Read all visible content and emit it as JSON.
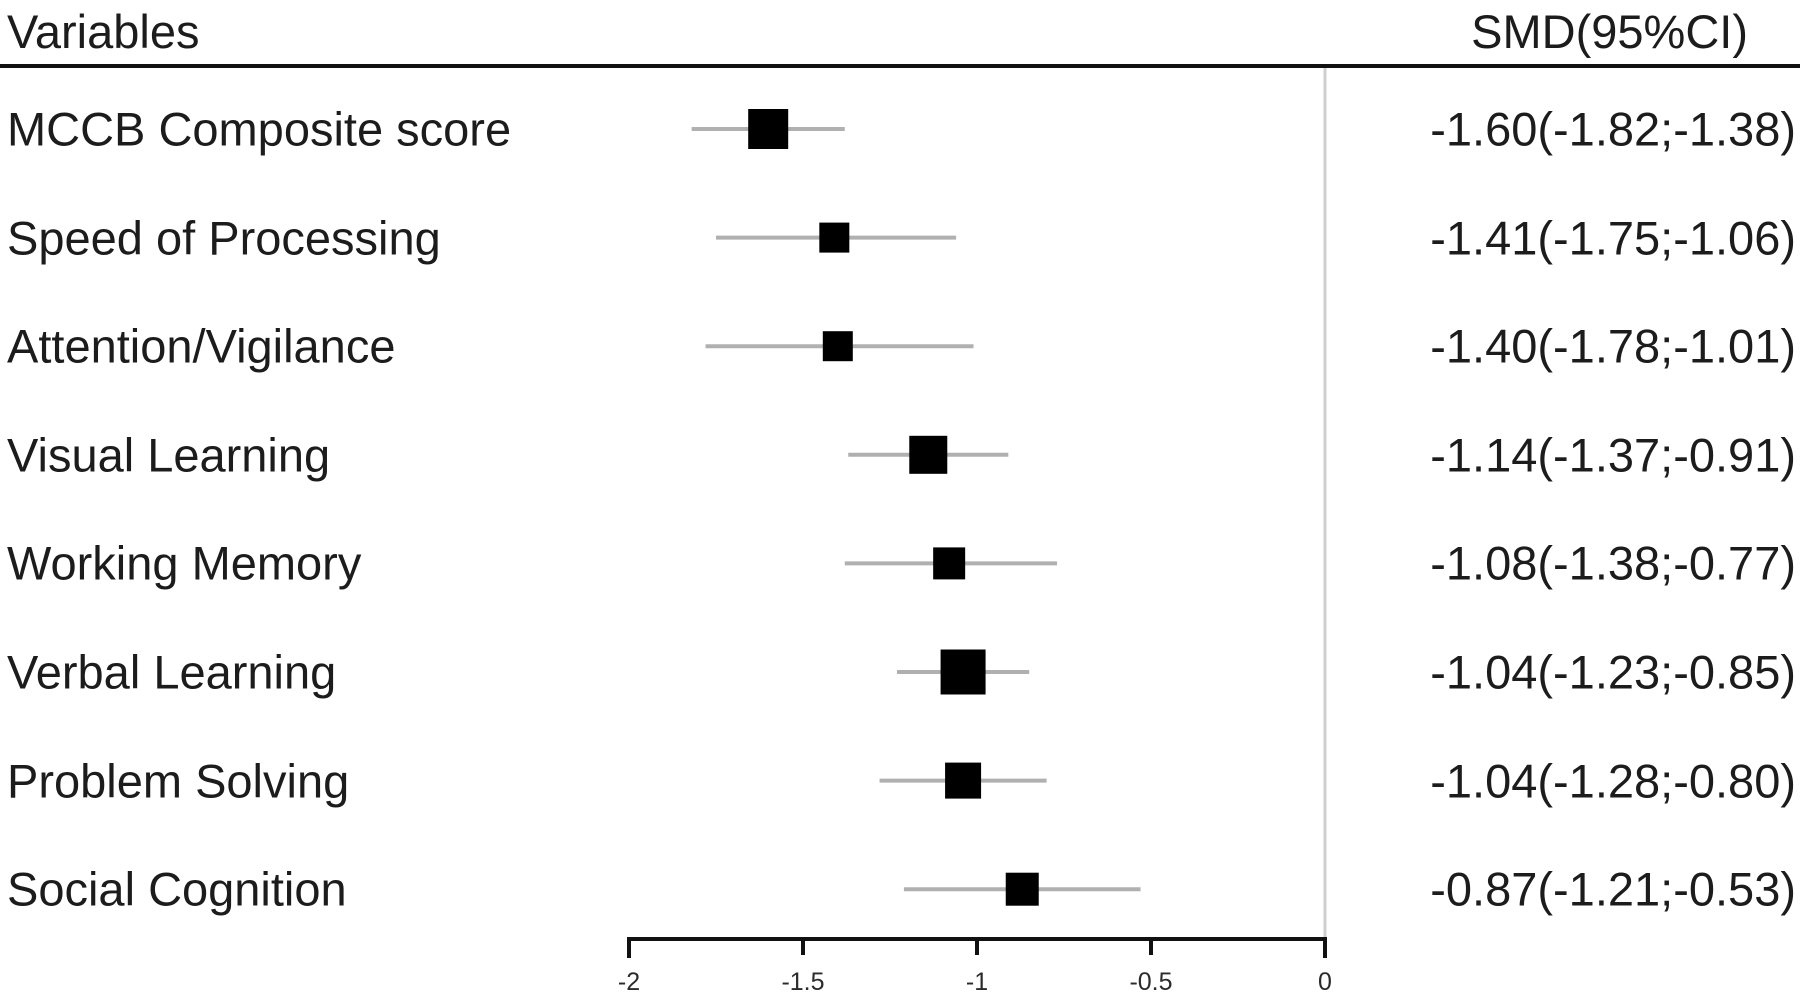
{
  "header": {
    "variables_label": "Variables",
    "smd_label": "SMD(95%CI)"
  },
  "colors": {
    "text": "#1c1c1c",
    "axis": "#111111",
    "ci_line": "#b0b0b0",
    "marker": "#000000",
    "reference_line": "#cfcfcf",
    "tick_label": "#2b2b2b"
  },
  "chart_data": {
    "type": "forest",
    "title": "",
    "xlabel": "",
    "legend": null,
    "x_axis": {
      "range": [
        -2,
        0
      ],
      "ticks": [
        -2,
        -1.5,
        -1,
        -0.5,
        0
      ],
      "tick_labels": [
        "-2",
        "-1.5",
        "-1",
        "-0.5",
        "0"
      ],
      "reference_line_x": 0
    },
    "rows": [
      {
        "label": "MCCB Composite score",
        "smd": -1.6,
        "ci_low": -1.82,
        "ci_high": -1.38,
        "display": "-1.60(-1.82;-1.38)",
        "marker_size": 40
      },
      {
        "label": "Speed of Processing",
        "smd": -1.41,
        "ci_low": -1.75,
        "ci_high": -1.06,
        "display": "-1.41(-1.75;-1.06)",
        "marker_size": 30
      },
      {
        "label": "Attention/Vigilance",
        "smd": -1.4,
        "ci_low": -1.78,
        "ci_high": -1.01,
        "display": "-1.40(-1.78;-1.01)",
        "marker_size": 30
      },
      {
        "label": "Visual Learning",
        "smd": -1.14,
        "ci_low": -1.37,
        "ci_high": -0.91,
        "display": "-1.14(-1.37;-0.91)",
        "marker_size": 38
      },
      {
        "label": "Working Memory",
        "smd": -1.08,
        "ci_low": -1.38,
        "ci_high": -0.77,
        "display": "-1.08(-1.38;-0.77)",
        "marker_size": 32
      },
      {
        "label": "Verbal Learning",
        "smd": -1.04,
        "ci_low": -1.23,
        "ci_high": -0.85,
        "display": "-1.04(-1.23;-0.85)",
        "marker_size": 45
      },
      {
        "label": "Problem Solving",
        "smd": -1.04,
        "ci_low": -1.28,
        "ci_high": -0.8,
        "display": "-1.04(-1.28;-0.80)",
        "marker_size": 36
      },
      {
        "label": "Social Cognition",
        "smd": -0.87,
        "ci_low": -1.21,
        "ci_high": -0.53,
        "display": "-0.87(-1.21;-0.53)",
        "marker_size": 33
      }
    ]
  }
}
